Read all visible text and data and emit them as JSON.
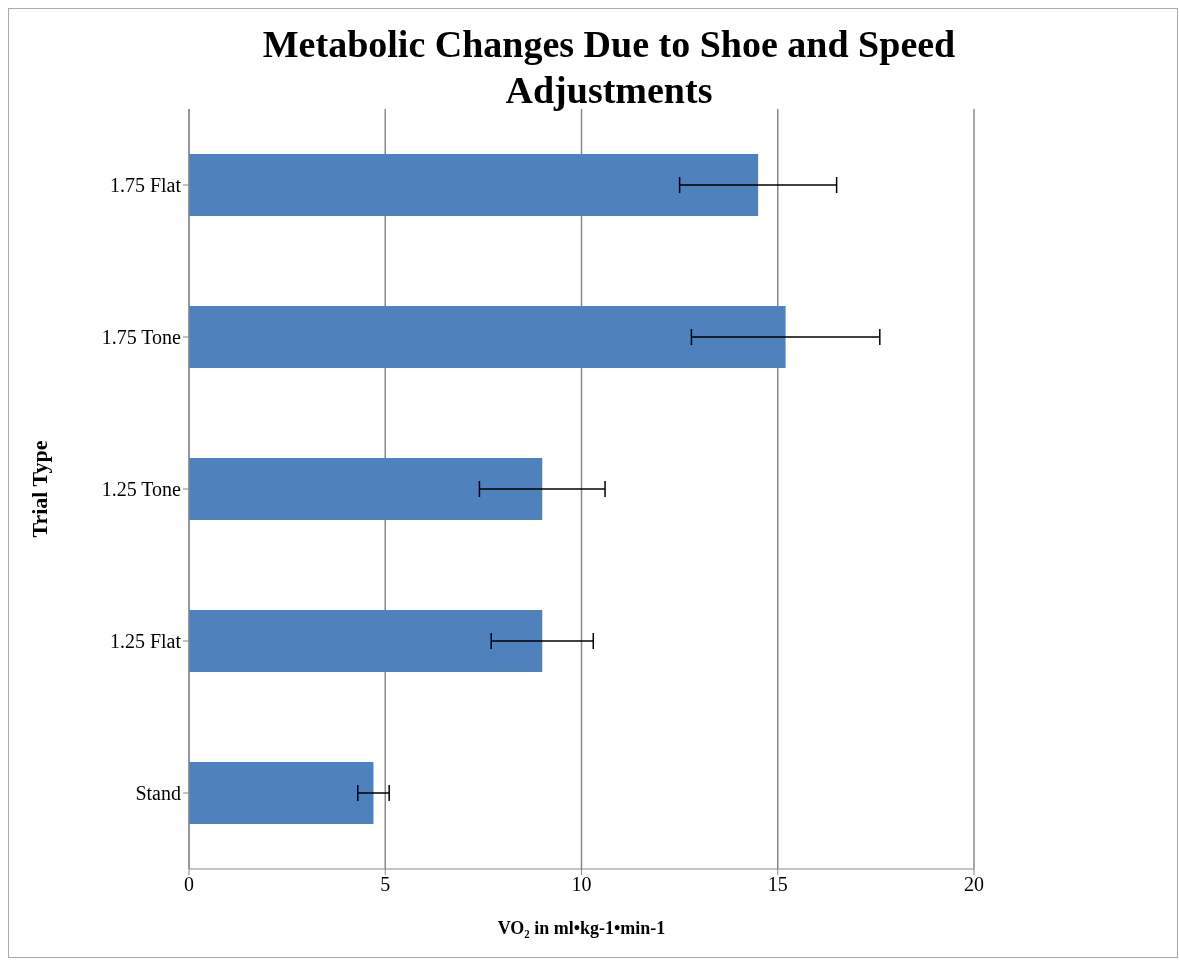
{
  "chart_data": {
    "type": "bar",
    "orientation": "horizontal",
    "title": "Metabolic Changes Due to Shoe and Speed Adjustments",
    "xlabel": "VO₂ in ml•kg-1•min-1",
    "ylabel": "Trial Type",
    "categories": [
      "1.75 Flat",
      "1.75 Tone",
      "1.25 Tone",
      "1.25 Flat",
      "Stand"
    ],
    "values": [
      14.5,
      15.2,
      9.0,
      9.0,
      4.7
    ],
    "errors": [
      2.0,
      2.4,
      1.6,
      1.3,
      0.4
    ],
    "color": "#4f81bd",
    "xlim": [
      0,
      20
    ],
    "xticks": [
      0,
      5,
      10,
      15,
      20
    ],
    "grid": "x"
  }
}
